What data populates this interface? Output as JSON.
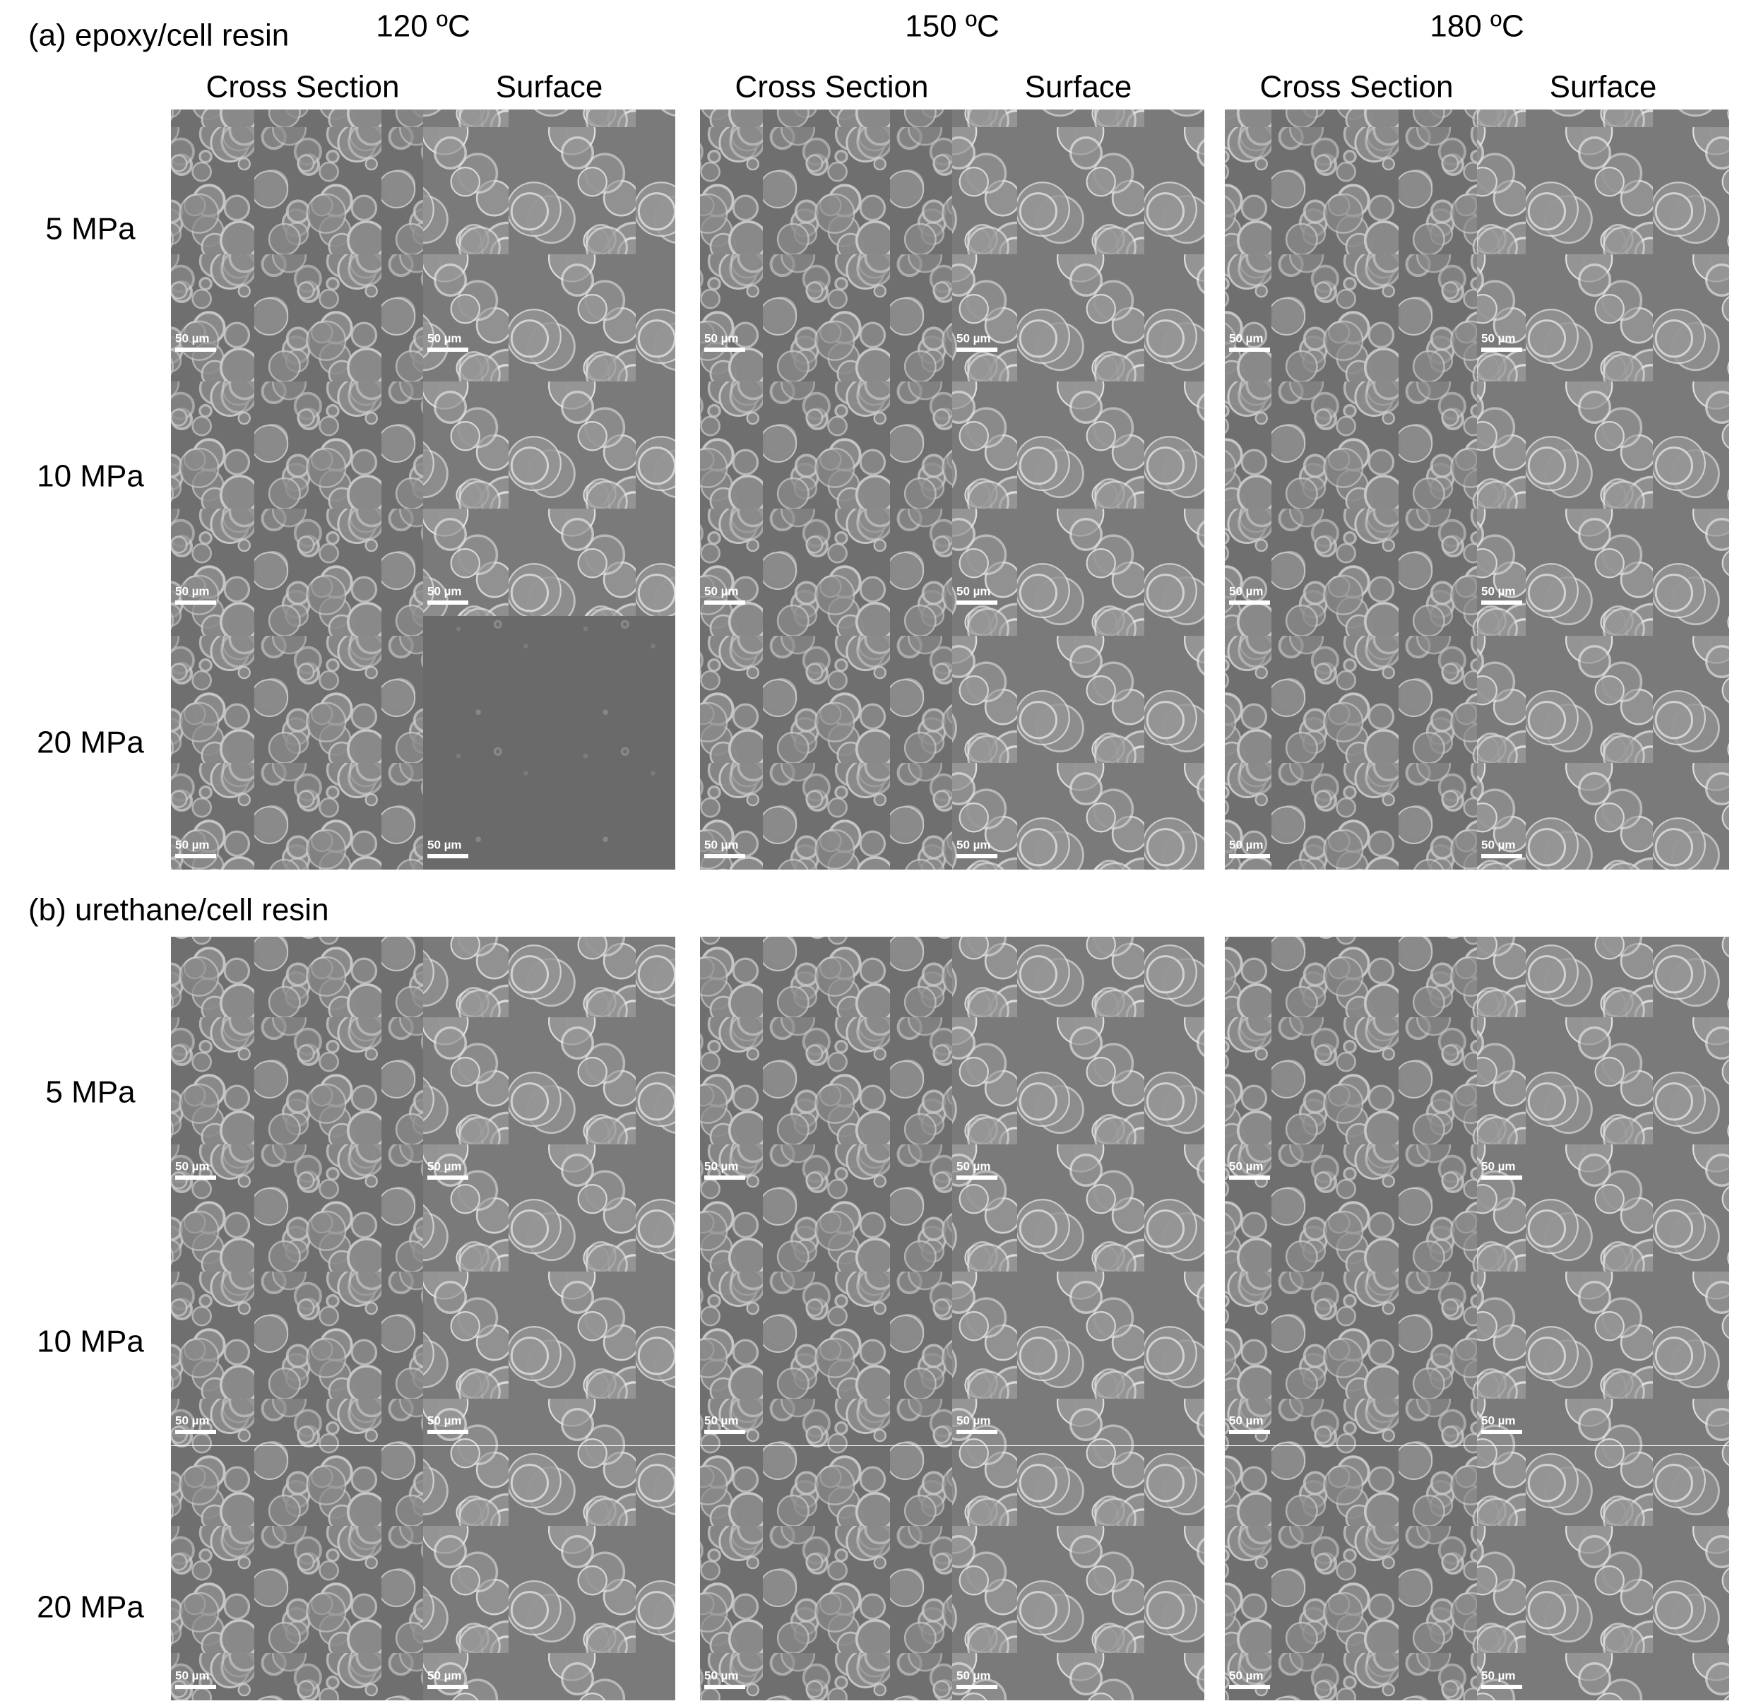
{
  "panels": [
    {
      "label": "(a) epoxy/cell resin",
      "temperatures": [
        "120 ºC",
        "150 ºC",
        "180 ºC"
      ],
      "columns": [
        "Cross Section",
        "Surface"
      ],
      "pressures": [
        "5 MPa",
        "10 MPa",
        "20 MPa"
      ],
      "scale_bar": "50 µm"
    },
    {
      "label": "(b) urethane/cell resin",
      "pressures": [
        "5 MPa",
        "10 MPa",
        "20 MPa"
      ],
      "scale_bar": "50 µm"
    }
  ]
}
